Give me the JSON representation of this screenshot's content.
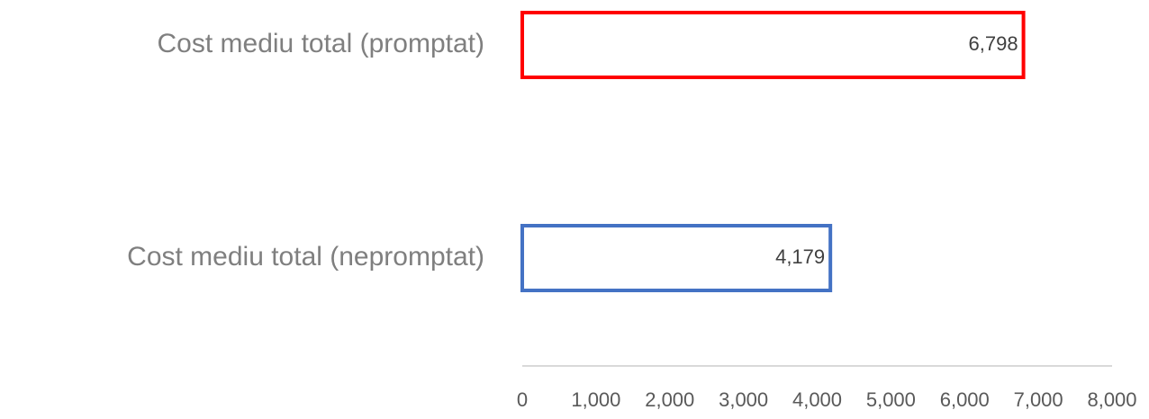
{
  "chart_data": {
    "type": "hbar",
    "categories": [
      "Cost mediu total (promptat)",
      "Cost mediu total (nepromptat)"
    ],
    "values": [
      6798,
      4179
    ],
    "value_labels": [
      "6,798",
      "4,179"
    ],
    "colors": [
      "#ff0000",
      "#4472c4"
    ],
    "xlim": [
      0,
      8000
    ],
    "xticks": [
      0,
      {
        "value": 1000,
        "label": "1,000"
      },
      {
        "value": 2000,
        "label": "2,000"
      },
      {
        "value": 3000,
        "label": "3,000"
      },
      {
        "value": 4000,
        "label": "4,000"
      },
      {
        "value": 5000,
        "label": "5,000"
      },
      {
        "value": 6000,
        "label": "6,000"
      },
      {
        "value": 7000,
        "label": "7,000"
      },
      {
        "value": 8000,
        "label": "8,000"
      }
    ]
  }
}
